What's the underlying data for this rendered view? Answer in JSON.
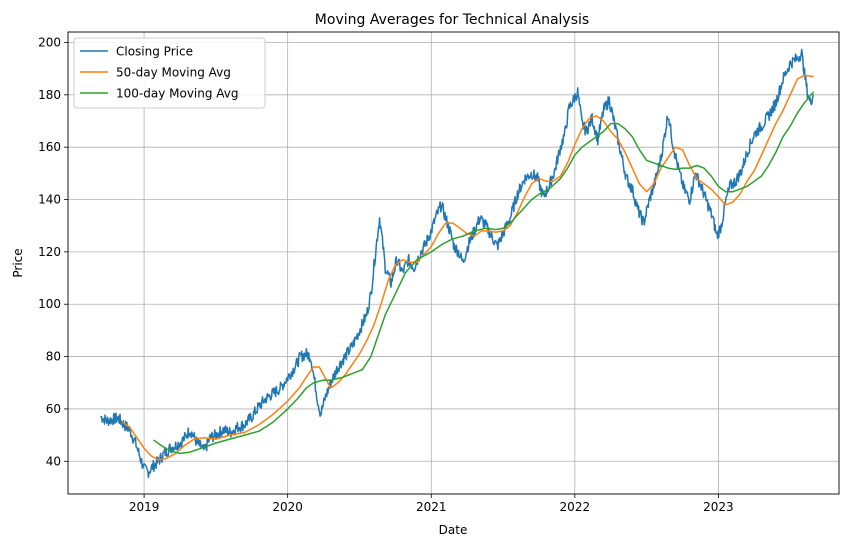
{
  "chart_data": {
    "type": "line",
    "title": "Moving Averages for Technical Analysis",
    "xlabel": "Date",
    "ylabel": "Price",
    "xlim": [
      2018.47,
      2023.84
    ],
    "ylim": [
      27.5,
      204
    ],
    "grid": true,
    "legend_position": "upper-left",
    "x_ticks": [
      {
        "value": 2019,
        "label": "2019"
      },
      {
        "value": 2020,
        "label": "2020"
      },
      {
        "value": 2021,
        "label": "2021"
      },
      {
        "value": 2022,
        "label": "2022"
      },
      {
        "value": 2023,
        "label": "2023"
      }
    ],
    "y_ticks": [
      {
        "value": 40,
        "label": "40"
      },
      {
        "value": 60,
        "label": "60"
      },
      {
        "value": 80,
        "label": "80"
      },
      {
        "value": 100,
        "label": "100"
      },
      {
        "value": 120,
        "label": "120"
      },
      {
        "value": 140,
        "label": "140"
      },
      {
        "value": 160,
        "label": "160"
      },
      {
        "value": 180,
        "label": "180"
      },
      {
        "value": 200,
        "label": "200"
      }
    ],
    "series": [
      {
        "name": "Closing Price",
        "color": "#1f77b4",
        "points": [
          [
            2018.7,
            57
          ],
          [
            2018.74,
            55.5
          ],
          [
            2018.78,
            56
          ],
          [
            2018.82,
            56.5
          ],
          [
            2018.86,
            54
          ],
          [
            2018.9,
            52
          ],
          [
            2018.94,
            47
          ],
          [
            2018.97,
            42
          ],
          [
            2019.0,
            37
          ],
          [
            2019.03,
            36
          ],
          [
            2019.06,
            38
          ],
          [
            2019.1,
            40
          ],
          [
            2019.14,
            43
          ],
          [
            2019.18,
            45
          ],
          [
            2019.22,
            46
          ],
          [
            2019.27,
            48
          ],
          [
            2019.32,
            52
          ],
          [
            2019.37,
            47
          ],
          [
            2019.42,
            44
          ],
          [
            2019.46,
            49
          ],
          [
            2019.5,
            50
          ],
          [
            2019.55,
            52
          ],
          [
            2019.6,
            51
          ],
          [
            2019.65,
            53
          ],
          [
            2019.7,
            54
          ],
          [
            2019.75,
            57
          ],
          [
            2019.8,
            61
          ],
          [
            2019.85,
            64
          ],
          [
            2019.9,
            66
          ],
          [
            2019.95,
            68
          ],
          [
            2020.0,
            72
          ],
          [
            2020.05,
            76
          ],
          [
            2020.09,
            80
          ],
          [
            2020.13,
            81
          ],
          [
            2020.16,
            80
          ],
          [
            2020.19,
            70
          ],
          [
            2020.21,
            63
          ],
          [
            2020.23,
            58
          ],
          [
            2020.26,
            64
          ],
          [
            2020.3,
            70
          ],
          [
            2020.35,
            76
          ],
          [
            2020.4,
            80
          ],
          [
            2020.45,
            84
          ],
          [
            2020.5,
            90
          ],
          [
            2020.55,
            96
          ],
          [
            2020.58,
            104
          ],
          [
            2020.61,
            119
          ],
          [
            2020.64,
            133
          ],
          [
            2020.66,
            124
          ],
          [
            2020.68,
            114
          ],
          [
            2020.72,
            108
          ],
          [
            2020.76,
            117
          ],
          [
            2020.8,
            112
          ],
          [
            2020.84,
            117
          ],
          [
            2020.88,
            114
          ],
          [
            2020.92,
            119
          ],
          [
            2020.96,
            123
          ],
          [
            2021.0,
            128
          ],
          [
            2021.03,
            133
          ],
          [
            2021.07,
            138
          ],
          [
            2021.1,
            133
          ],
          [
            2021.13,
            128
          ],
          [
            2021.16,
            122
          ],
          [
            2021.19,
            120
          ],
          [
            2021.22,
            116
          ],
          [
            2021.26,
            123
          ],
          [
            2021.3,
            128
          ],
          [
            2021.34,
            133
          ],
          [
            2021.38,
            130
          ],
          [
            2021.42,
            126
          ],
          [
            2021.46,
            122
          ],
          [
            2021.5,
            127
          ],
          [
            2021.55,
            133
          ],
          [
            2021.6,
            142
          ],
          [
            2021.65,
            148
          ],
          [
            2021.7,
            150
          ],
          [
            2021.74,
            148
          ],
          [
            2021.78,
            141
          ],
          [
            2021.82,
            145
          ],
          [
            2021.86,
            151
          ],
          [
            2021.9,
            160
          ],
          [
            2021.93,
            165
          ],
          [
            2021.96,
            175
          ],
          [
            2021.99,
            178
          ],
          [
            2022.02,
            181
          ],
          [
            2022.05,
            169
          ],
          [
            2022.08,
            166
          ],
          [
            2022.12,
            171
          ],
          [
            2022.16,
            163
          ],
          [
            2022.2,
            174
          ],
          [
            2022.24,
            178
          ],
          [
            2022.28,
            168
          ],
          [
            2022.32,
            158
          ],
          [
            2022.36,
            148
          ],
          [
            2022.4,
            144
          ],
          [
            2022.44,
            136
          ],
          [
            2022.48,
            131
          ],
          [
            2022.52,
            140
          ],
          [
            2022.56,
            147
          ],
          [
            2022.6,
            156
          ],
          [
            2022.63,
            166
          ],
          [
            2022.65,
            173
          ],
          [
            2022.68,
            162
          ],
          [
            2022.72,
            152
          ],
          [
            2022.76,
            144
          ],
          [
            2022.8,
            140
          ],
          [
            2022.84,
            150
          ],
          [
            2022.88,
            145
          ],
          [
            2022.92,
            139
          ],
          [
            2022.96,
            133
          ],
          [
            2022.99,
            126
          ],
          [
            2023.02,
            130
          ],
          [
            2023.05,
            139
          ],
          [
            2023.08,
            145
          ],
          [
            2023.12,
            147
          ],
          [
            2023.16,
            151
          ],
          [
            2023.2,
            158
          ],
          [
            2023.25,
            165
          ],
          [
            2023.3,
            168
          ],
          [
            2023.35,
            172
          ],
          [
            2023.4,
            177
          ],
          [
            2023.45,
            186
          ],
          [
            2023.5,
            192
          ],
          [
            2023.55,
            194
          ],
          [
            2023.58,
            196
          ],
          [
            2023.6,
            188
          ],
          [
            2023.62,
            181
          ],
          [
            2023.64,
            177
          ],
          [
            2023.66,
            180
          ]
        ]
      },
      {
        "name": "50-day Moving Avg",
        "color": "#ff7f0e",
        "points": [
          [
            2018.85,
            55
          ],
          [
            2018.9,
            53
          ],
          [
            2018.95,
            49
          ],
          [
            2019.0,
            45
          ],
          [
            2019.05,
            42
          ],
          [
            2019.1,
            40.5
          ],
          [
            2019.15,
            41
          ],
          [
            2019.22,
            43
          ],
          [
            2019.28,
            46
          ],
          [
            2019.35,
            48.5
          ],
          [
            2019.42,
            49
          ],
          [
            2019.5,
            48.5
          ],
          [
            2019.6,
            50
          ],
          [
            2019.7,
            51
          ],
          [
            2019.8,
            54
          ],
          [
            2019.9,
            58
          ],
          [
            2020.0,
            63
          ],
          [
            2020.08,
            68
          ],
          [
            2020.14,
            73
          ],
          [
            2020.18,
            76
          ],
          [
            2020.22,
            76
          ],
          [
            2020.26,
            72
          ],
          [
            2020.3,
            68
          ],
          [
            2020.35,
            70
          ],
          [
            2020.4,
            73
          ],
          [
            2020.45,
            77
          ],
          [
            2020.5,
            81
          ],
          [
            2020.55,
            86
          ],
          [
            2020.6,
            92
          ],
          [
            2020.65,
            100
          ],
          [
            2020.7,
            109
          ],
          [
            2020.75,
            115
          ],
          [
            2020.8,
            117
          ],
          [
            2020.85,
            116
          ],
          [
            2020.9,
            116
          ],
          [
            2020.95,
            119
          ],
          [
            2021.0,
            122
          ],
          [
            2021.05,
            127
          ],
          [
            2021.1,
            131
          ],
          [
            2021.15,
            131
          ],
          [
            2021.2,
            129
          ],
          [
            2021.25,
            127
          ],
          [
            2021.3,
            126
          ],
          [
            2021.35,
            128
          ],
          [
            2021.4,
            128
          ],
          [
            2021.45,
            127.5
          ],
          [
            2021.5,
            128
          ],
          [
            2021.55,
            130
          ],
          [
            2021.6,
            135
          ],
          [
            2021.65,
            141
          ],
          [
            2021.7,
            146
          ],
          [
            2021.75,
            148
          ],
          [
            2021.8,
            147
          ],
          [
            2021.85,
            147
          ],
          [
            2021.9,
            149
          ],
          [
            2021.95,
            154
          ],
          [
            2022.0,
            161
          ],
          [
            2022.05,
            167
          ],
          [
            2022.1,
            171
          ],
          [
            2022.15,
            172
          ],
          [
            2022.2,
            170
          ],
          [
            2022.25,
            166
          ],
          [
            2022.3,
            163
          ],
          [
            2022.35,
            158
          ],
          [
            2022.4,
            152
          ],
          [
            2022.45,
            146
          ],
          [
            2022.5,
            143
          ],
          [
            2022.55,
            146
          ],
          [
            2022.6,
            152
          ],
          [
            2022.65,
            156
          ],
          [
            2022.7,
            160
          ],
          [
            2022.75,
            159
          ],
          [
            2022.8,
            153
          ],
          [
            2022.85,
            148
          ],
          [
            2022.9,
            146
          ],
          [
            2022.95,
            144
          ],
          [
            2023.0,
            141
          ],
          [
            2023.05,
            138
          ],
          [
            2023.1,
            139
          ],
          [
            2023.15,
            142
          ],
          [
            2023.2,
            147
          ],
          [
            2023.25,
            151
          ],
          [
            2023.3,
            157
          ],
          [
            2023.35,
            163
          ],
          [
            2023.4,
            169
          ],
          [
            2023.45,
            174
          ],
          [
            2023.5,
            180
          ],
          [
            2023.55,
            186
          ],
          [
            2023.6,
            187.5
          ],
          [
            2023.66,
            187
          ]
        ]
      },
      {
        "name": "100-day Moving Avg",
        "color": "#2ca02c",
        "points": [
          [
            2019.07,
            48
          ],
          [
            2019.12,
            46
          ],
          [
            2019.18,
            44
          ],
          [
            2019.25,
            43
          ],
          [
            2019.32,
            43.5
          ],
          [
            2019.4,
            45
          ],
          [
            2019.5,
            47
          ],
          [
            2019.6,
            48.5
          ],
          [
            2019.7,
            50
          ],
          [
            2019.8,
            51.5
          ],
          [
            2019.9,
            55
          ],
          [
            2020.0,
            60
          ],
          [
            2020.07,
            64
          ],
          [
            2020.13,
            68
          ],
          [
            2020.18,
            70
          ],
          [
            2020.25,
            71
          ],
          [
            2020.3,
            71
          ],
          [
            2020.38,
            72
          ],
          [
            2020.45,
            73.5
          ],
          [
            2020.52,
            75
          ],
          [
            2020.58,
            80
          ],
          [
            2020.63,
            88
          ],
          [
            2020.68,
            96
          ],
          [
            2020.75,
            104
          ],
          [
            2020.82,
            112
          ],
          [
            2020.9,
            117
          ],
          [
            2021.0,
            120
          ],
          [
            2021.08,
            123
          ],
          [
            2021.15,
            125
          ],
          [
            2021.22,
            126
          ],
          [
            2021.3,
            128
          ],
          [
            2021.38,
            129
          ],
          [
            2021.45,
            128.5
          ],
          [
            2021.5,
            129
          ],
          [
            2021.55,
            131
          ],
          [
            2021.6,
            134
          ],
          [
            2021.65,
            137
          ],
          [
            2021.7,
            140
          ],
          [
            2021.75,
            142
          ],
          [
            2021.82,
            144
          ],
          [
            2021.9,
            148
          ],
          [
            2021.95,
            152
          ],
          [
            2022.0,
            157
          ],
          [
            2022.05,
            160
          ],
          [
            2022.1,
            162
          ],
          [
            2022.15,
            164
          ],
          [
            2022.2,
            166
          ],
          [
            2022.25,
            169
          ],
          [
            2022.3,
            169
          ],
          [
            2022.35,
            167
          ],
          [
            2022.4,
            164
          ],
          [
            2022.45,
            159
          ],
          [
            2022.5,
            155
          ],
          [
            2022.55,
            154
          ],
          [
            2022.6,
            153
          ],
          [
            2022.65,
            152
          ],
          [
            2022.7,
            151.5
          ],
          [
            2022.75,
            152
          ],
          [
            2022.8,
            152
          ],
          [
            2022.85,
            153
          ],
          [
            2022.9,
            152
          ],
          [
            2022.95,
            149
          ],
          [
            2023.0,
            145
          ],
          [
            2023.05,
            143
          ],
          [
            2023.1,
            143
          ],
          [
            2023.15,
            144
          ],
          [
            2023.2,
            145
          ],
          [
            2023.25,
            147
          ],
          [
            2023.3,
            149
          ],
          [
            2023.35,
            153
          ],
          [
            2023.4,
            158
          ],
          [
            2023.45,
            164
          ],
          [
            2023.5,
            168
          ],
          [
            2023.55,
            173
          ],
          [
            2023.6,
            177
          ],
          [
            2023.66,
            181
          ]
        ]
      }
    ]
  }
}
